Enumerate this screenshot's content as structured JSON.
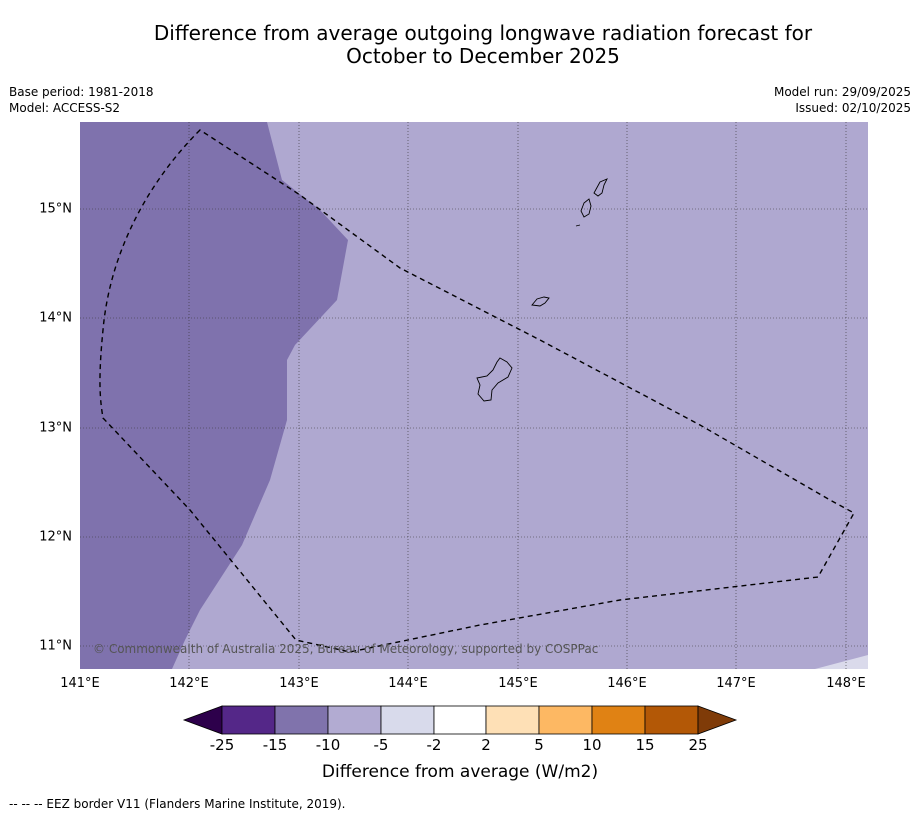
{
  "title_line1": "Difference from average outgoing longwave radiation forecast for",
  "title_line2": "October to December 2025",
  "meta_left": {
    "base_period": "Base period: 1981-2018",
    "model": "Model: ACCESS-S2"
  },
  "meta_right": {
    "model_run": "Model run: 29/09/2025",
    "issued": "Issued: 02/10/2025"
  },
  "map": {
    "lat_labels": [
      "15°N",
      "14°N",
      "13°N",
      "12°N",
      "11°N"
    ],
    "lon_labels": [
      "141°E",
      "142°E",
      "143°E",
      "144°E",
      "145°E",
      "146°E",
      "147°E",
      "148°E"
    ],
    "copyright": "© Commonwealth of Australia 2025, Bureau of Meteorology, supported by COSPPac",
    "colors": {
      "minus15_to_minus10": "#7f72ad",
      "minus10_to_minus5": "#afa8d0",
      "minus5_to_minus2": "#dadaeb"
    }
  },
  "colorbar": {
    "title": "Difference from average (W/m2)",
    "ticks": [
      "-25",
      "-15",
      "-10",
      "-5",
      "-2",
      "2",
      "5",
      "10",
      "15",
      "25"
    ],
    "colors": [
      "#2d004b",
      "#542788",
      "#8073ac",
      "#b2abd2",
      "#d8daeb",
      "#ffffff",
      "#fee0b6",
      "#fdb863",
      "#e08214",
      "#b35806",
      "#7f3b08"
    ]
  },
  "footer": "--  --  -- EEZ border V11 (Flanders Marine Institute, 2019)."
}
